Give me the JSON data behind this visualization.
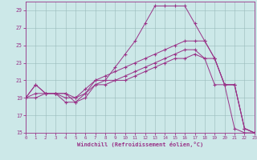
{
  "xlabel": "Windchill (Refroidissement éolien,°C)",
  "bg_color": "#cce8e8",
  "line_color": "#993388",
  "xlim": [
    0,
    23
  ],
  "ylim": [
    15,
    30
  ],
  "xticks": [
    0,
    1,
    2,
    3,
    4,
    5,
    6,
    7,
    8,
    9,
    10,
    11,
    12,
    13,
    14,
    15,
    16,
    17,
    18,
    19,
    20,
    21,
    22,
    23
  ],
  "yticks": [
    15,
    17,
    19,
    21,
    23,
    25,
    27,
    29
  ],
  "x_data": [
    0,
    1,
    2,
    3,
    4,
    5,
    6,
    7,
    8,
    9,
    10,
    11,
    12,
    13,
    14,
    15,
    16,
    17,
    18,
    19,
    20,
    21,
    22,
    23
  ],
  "y_curve1": [
    19,
    20.5,
    19.5,
    19.5,
    19.5,
    18.5,
    19.5,
    21.0,
    21.0,
    22.5,
    24.0,
    25.5,
    27.5,
    29.5,
    29.5,
    29.5,
    29.5,
    27.5,
    25.5,
    23.5,
    20.5,
    20.5,
    15.5,
    15.0
  ],
  "y_curve2": [
    19,
    20.5,
    19.5,
    19.5,
    19.5,
    19.0,
    20.0,
    21.0,
    21.5,
    22.0,
    22.5,
    23.0,
    23.5,
    24.0,
    24.5,
    25.0,
    25.5,
    25.5,
    25.5,
    23.5,
    20.5,
    20.5,
    15.5,
    15.0
  ],
  "y_curve3": [
    19,
    19.5,
    19.5,
    19.5,
    19.0,
    19.0,
    19.5,
    20.5,
    21.0,
    21.0,
    21.5,
    22.0,
    22.5,
    23.0,
    23.5,
    24.0,
    24.5,
    24.5,
    23.5,
    23.5,
    20.5,
    20.5,
    15.5,
    15.0
  ],
  "y_curve4": [
    19,
    19.0,
    19.5,
    19.5,
    18.5,
    18.5,
    19.0,
    20.5,
    20.5,
    21.0,
    21.0,
    21.5,
    22.0,
    22.5,
    23.0,
    23.5,
    23.5,
    24.0,
    23.5,
    20.5,
    20.5,
    15.5,
    15.0,
    15.0
  ]
}
